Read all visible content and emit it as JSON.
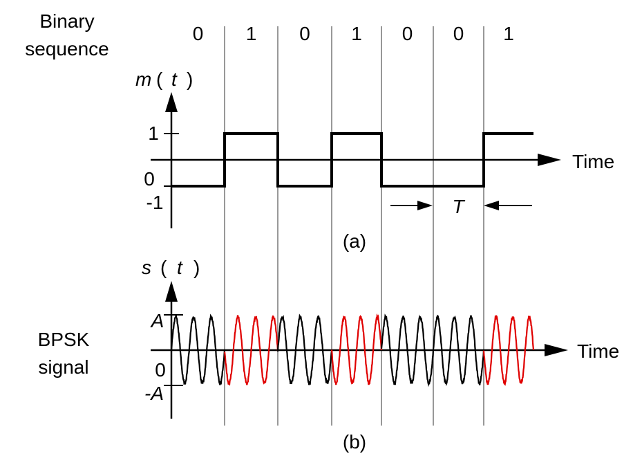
{
  "labels": {
    "binary_line1": "Binary",
    "binary_line2": "sequence",
    "m_m": "m",
    "m_open": "(",
    "m_t": "t",
    "m_close": ")",
    "tick_1": "1",
    "tick_0": "0",
    "tick_neg1": "-1",
    "time_a": "Time",
    "period": "T",
    "caption_a": "(a)",
    "s_s": "s",
    "s_open": "(",
    "s_t": "t",
    "s_close": ")",
    "tick_A": "A",
    "tick_0b": "0",
    "tick_negA": "-A",
    "bpsk_line1": "BPSK",
    "bpsk_line2": "signal",
    "time_b": "Time",
    "caption_b": "(b)"
  },
  "bits": [
    "0",
    "1",
    "0",
    "1",
    "0",
    "0",
    "1"
  ],
  "colors": {
    "ink": "#000000",
    "grid": "#8c8c8c",
    "bit1_wave": "#e00000",
    "bit0_wave": "#000000"
  }
}
